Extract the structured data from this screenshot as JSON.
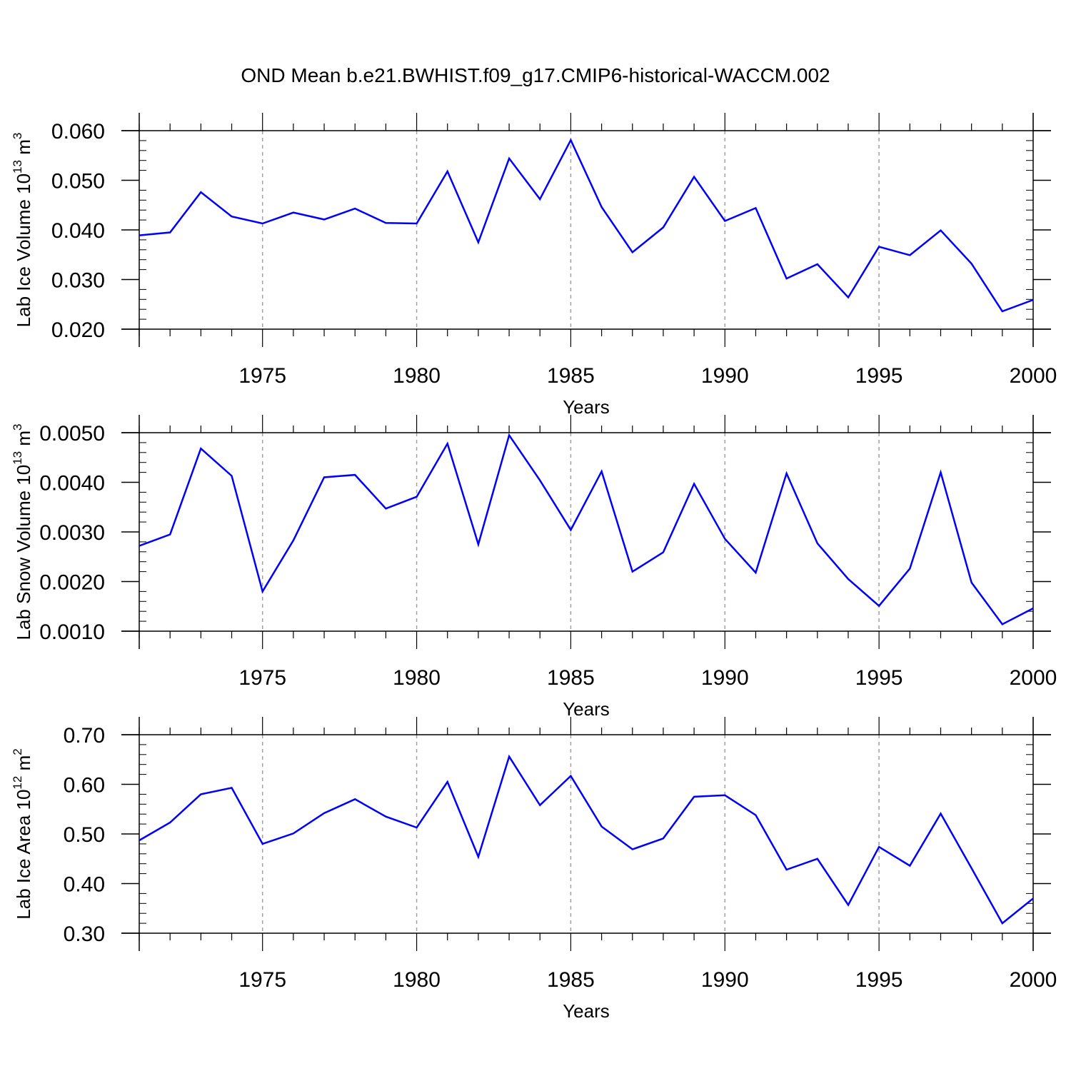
{
  "title": "OND Mean b.e21.BWHIST.f09_g17.CMIP6-historical-WACCM.002",
  "colors": {
    "line": "#0000ff",
    "axis": "#000000",
    "grid": "#a0a0a0"
  },
  "chart_data": [
    {
      "type": "line",
      "xlabel": "Years",
      "ylabel": {
        "base": "Lab Ice Volume 10",
        "exponent": "13",
        "unit": " m",
        "unit_exponent": "3"
      },
      "xlim": [
        1971,
        2000
      ],
      "ylim": [
        0.02,
        0.06
      ],
      "yticks": [
        0.02,
        0.03,
        0.04,
        0.05,
        0.06
      ],
      "ytick_labels": [
        "0.020",
        "0.030",
        "0.040",
        "0.050",
        "0.060"
      ],
      "xticks": [
        1975,
        1980,
        1985,
        1990,
        1995,
        2000
      ],
      "xtick_labels": [
        "1975",
        "1980",
        "1985",
        "1990",
        "1995",
        "2000"
      ],
      "grid": "vertical-dashed",
      "series": [
        {
          "x": [
            1971,
            1972,
            1973,
            1974,
            1975,
            1976,
            1977,
            1978,
            1979,
            1980,
            1981,
            1982,
            1983,
            1984,
            1985,
            1986,
            1987,
            1988,
            1989,
            1990,
            1991,
            1992,
            1993,
            1994,
            1995,
            1996,
            1997,
            1998,
            1999,
            2000
          ],
          "values": [
            0.0389,
            0.0395,
            0.0476,
            0.0427,
            0.0413,
            0.0435,
            0.0421,
            0.0443,
            0.0414,
            0.0413,
            0.0518,
            0.0375,
            0.0544,
            0.0462,
            0.0581,
            0.0446,
            0.0355,
            0.0405,
            0.0507,
            0.0418,
            0.0444,
            0.0302,
            0.0331,
            0.0264,
            0.0366,
            0.0349,
            0.0399,
            0.0332,
            0.0236,
            0.0259
          ]
        }
      ]
    },
    {
      "type": "line",
      "xlabel": "Years",
      "ylabel": {
        "base": "Lab Snow Volume 10",
        "exponent": "13",
        "unit": " m",
        "unit_exponent": "3"
      },
      "xlim": [
        1971,
        2000
      ],
      "ylim": [
        0.001,
        0.005
      ],
      "yticks": [
        0.001,
        0.002,
        0.003,
        0.004,
        0.005
      ],
      "ytick_labels": [
        "0.0010",
        "0.0020",
        "0.0030",
        "0.0040",
        "0.0050"
      ],
      "xticks": [
        1975,
        1980,
        1985,
        1990,
        1995,
        2000
      ],
      "xtick_labels": [
        "1975",
        "1980",
        "1985",
        "1990",
        "1995",
        "2000"
      ],
      "grid": "vertical-dashed",
      "series": [
        {
          "x": [
            1971,
            1972,
            1973,
            1974,
            1975,
            1976,
            1977,
            1978,
            1979,
            1980,
            1981,
            1982,
            1983,
            1984,
            1985,
            1986,
            1987,
            1988,
            1989,
            1990,
            1991,
            1992,
            1993,
            1994,
            1995,
            1996,
            1997,
            1998,
            1999,
            2000
          ],
          "values": [
            0.00272,
            0.00295,
            0.00468,
            0.00413,
            0.0018,
            0.00283,
            0.0041,
            0.00415,
            0.00347,
            0.00371,
            0.00478,
            0.00275,
            0.00495,
            0.00404,
            0.00304,
            0.00422,
            0.0022,
            0.00259,
            0.00397,
            0.00286,
            0.00218,
            0.00418,
            0.00277,
            0.00205,
            0.00151,
            0.00226,
            0.0042,
            0.00198,
            0.00114,
            0.00146
          ]
        }
      ]
    },
    {
      "type": "line",
      "xlabel": "Years",
      "ylabel": {
        "base": "Lab Ice Area 10",
        "exponent": "12",
        "unit": " m",
        "unit_exponent": "2"
      },
      "xlim": [
        1971,
        2000
      ],
      "ylim": [
        0.3,
        0.7
      ],
      "yticks": [
        0.3,
        0.4,
        0.5,
        0.6,
        0.7
      ],
      "ytick_labels": [
        "0.30",
        "0.40",
        "0.50",
        "0.60",
        "0.70"
      ],
      "xticks": [
        1975,
        1980,
        1985,
        1990,
        1995,
        2000
      ],
      "xtick_labels": [
        "1975",
        "1980",
        "1985",
        "1990",
        "1995",
        "2000"
      ],
      "grid": "vertical-dashed",
      "series": [
        {
          "x": [
            1971,
            1972,
            1973,
            1974,
            1975,
            1976,
            1977,
            1978,
            1979,
            1980,
            1981,
            1982,
            1983,
            1984,
            1985,
            1986,
            1987,
            1988,
            1989,
            1990,
            1991,
            1992,
            1993,
            1994,
            1995,
            1996,
            1997,
            1998,
            1999,
            2000
          ],
          "values": [
            0.487,
            0.523,
            0.58,
            0.593,
            0.48,
            0.501,
            0.542,
            0.57,
            0.535,
            0.513,
            0.605,
            0.454,
            0.656,
            0.558,
            0.617,
            0.515,
            0.469,
            0.491,
            0.575,
            0.578,
            0.538,
            0.428,
            0.45,
            0.357,
            0.474,
            0.436,
            0.541,
            0.431,
            0.32,
            0.37
          ]
        }
      ]
    }
  ]
}
